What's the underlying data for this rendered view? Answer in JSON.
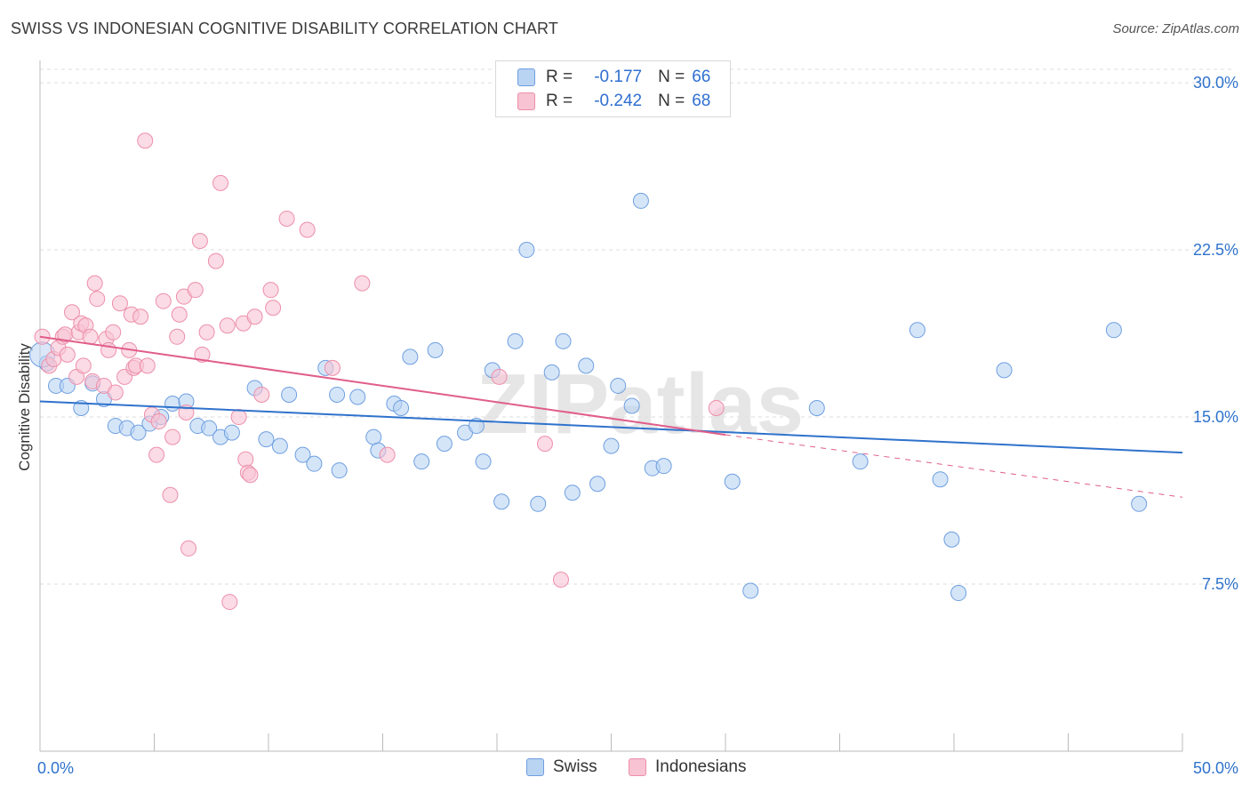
{
  "chart_data": {
    "type": "scatter",
    "title": "SWISS VS INDONESIAN COGNITIVE DISABILITY CORRELATION CHART",
    "source": "Source: ZipAtlas.com",
    "xlabel": "",
    "ylabel": "Cognitive Disability",
    "xlim": [
      0,
      50
    ],
    "ylim": [
      0,
      31
    ],
    "x_tick_labels": [
      "0.0%",
      "50.0%"
    ],
    "y_ticks": [
      7.5,
      15.0,
      22.5,
      30.0
    ],
    "y_tick_labels": [
      "7.5%",
      "15.0%",
      "22.5%",
      "30.0%"
    ],
    "watermark": "ZIPatlas",
    "legend": [
      {
        "name": "Swiss",
        "r_label": "R =",
        "r": "-0.177",
        "n_label": "N =",
        "n": "66"
      },
      {
        "name": "Indonesians",
        "r_label": "R =",
        "r": "-0.242",
        "n_label": "N =",
        "n": "68"
      }
    ],
    "colors": {
      "swiss_fill": "#b9d3f3",
      "swiss_stroke": "#6e9fe0",
      "swiss_line": "#2f72cc",
      "indo_fill": "#f8c3d3",
      "indo_stroke": "#ec8faa",
      "indo_line": "#e05d8a",
      "grid": "#dddddd",
      "axis_text": "#2f72cc"
    },
    "series": [
      {
        "name": "Swiss",
        "trend": {
          "x0": 0,
          "y0": 15.7,
          "x1": 50,
          "y1": 13.4
        },
        "points": [
          [
            0.3,
            17.4
          ],
          [
            0.7,
            16.4
          ],
          [
            1.2,
            16.4
          ],
          [
            1.8,
            15.4
          ],
          [
            2.3,
            16.5
          ],
          [
            2.8,
            15.8
          ],
          [
            3.3,
            14.6
          ],
          [
            3.8,
            14.5
          ],
          [
            4.3,
            14.3
          ],
          [
            4.8,
            14.7
          ],
          [
            5.3,
            15.0
          ],
          [
            5.8,
            15.6
          ],
          [
            6.4,
            15.7
          ],
          [
            6.9,
            14.6
          ],
          [
            7.4,
            14.5
          ],
          [
            7.9,
            14.1
          ],
          [
            8.4,
            14.3
          ],
          [
            9.4,
            16.3
          ],
          [
            9.9,
            14.0
          ],
          [
            10.5,
            13.7
          ],
          [
            10.9,
            16.0
          ],
          [
            11.5,
            13.3
          ],
          [
            12.0,
            12.9
          ],
          [
            12.5,
            17.2
          ],
          [
            13.0,
            16.0
          ],
          [
            13.1,
            12.6
          ],
          [
            13.9,
            15.9
          ],
          [
            14.6,
            14.1
          ],
          [
            14.8,
            13.5
          ],
          [
            15.5,
            15.6
          ],
          [
            15.8,
            15.4
          ],
          [
            16.2,
            17.7
          ],
          [
            16.7,
            13.0
          ],
          [
            17.3,
            18.0
          ],
          [
            17.7,
            13.8
          ],
          [
            18.6,
            14.3
          ],
          [
            19.1,
            14.6
          ],
          [
            19.4,
            13.0
          ],
          [
            19.8,
            17.1
          ],
          [
            20.2,
            11.2
          ],
          [
            20.8,
            18.4
          ],
          [
            21.3,
            22.5
          ],
          [
            21.8,
            11.1
          ],
          [
            22.4,
            17.0
          ],
          [
            22.9,
            18.4
          ],
          [
            23.3,
            11.6
          ],
          [
            23.9,
            17.3
          ],
          [
            24.4,
            12.0
          ],
          [
            25.0,
            13.7
          ],
          [
            25.3,
            16.4
          ],
          [
            25.9,
            15.5
          ],
          [
            26.3,
            24.7
          ],
          [
            26.8,
            12.7
          ],
          [
            27.3,
            12.8
          ],
          [
            30.3,
            12.1
          ],
          [
            31.1,
            7.2
          ],
          [
            34.0,
            15.4
          ],
          [
            35.9,
            13.0
          ],
          [
            38.4,
            18.9
          ],
          [
            39.4,
            12.2
          ],
          [
            39.9,
            9.5
          ],
          [
            40.2,
            7.1
          ],
          [
            42.2,
            17.1
          ],
          [
            47.0,
            18.9
          ],
          [
            48.1,
            11.1
          ],
          [
            0.1,
            17.8
          ]
        ]
      },
      {
        "name": "Indonesians",
        "trend": {
          "x0": 0,
          "y0": 18.6,
          "x1": 30,
          "y1": 14.2,
          "dash_x1": 50,
          "dash_y1": 11.4
        },
        "points": [
          [
            0.1,
            18.6
          ],
          [
            0.4,
            17.3
          ],
          [
            0.6,
            17.6
          ],
          [
            0.8,
            18.1
          ],
          [
            1.0,
            18.6
          ],
          [
            1.1,
            18.7
          ],
          [
            1.2,
            17.8
          ],
          [
            1.4,
            19.7
          ],
          [
            1.6,
            16.8
          ],
          [
            1.7,
            18.8
          ],
          [
            1.8,
            19.2
          ],
          [
            1.9,
            17.3
          ],
          [
            2.0,
            19.1
          ],
          [
            2.2,
            18.6
          ],
          [
            2.3,
            16.6
          ],
          [
            2.4,
            21.0
          ],
          [
            2.5,
            20.3
          ],
          [
            2.8,
            16.4
          ],
          [
            2.9,
            18.5
          ],
          [
            3.0,
            18.0
          ],
          [
            3.2,
            18.8
          ],
          [
            3.3,
            16.1
          ],
          [
            3.5,
            20.1
          ],
          [
            3.7,
            16.8
          ],
          [
            3.9,
            18.0
          ],
          [
            4.0,
            19.6
          ],
          [
            4.1,
            17.2
          ],
          [
            4.2,
            17.3
          ],
          [
            4.4,
            19.5
          ],
          [
            4.6,
            27.4
          ],
          [
            4.7,
            17.3
          ],
          [
            4.9,
            15.1
          ],
          [
            5.1,
            13.3
          ],
          [
            5.2,
            14.8
          ],
          [
            5.4,
            20.2
          ],
          [
            5.7,
            11.5
          ],
          [
            5.8,
            14.1
          ],
          [
            6.0,
            18.6
          ],
          [
            6.1,
            19.6
          ],
          [
            6.3,
            20.4
          ],
          [
            6.4,
            15.2
          ],
          [
            6.5,
            9.1
          ],
          [
            6.8,
            20.7
          ],
          [
            7.0,
            22.9
          ],
          [
            7.1,
            17.8
          ],
          [
            7.3,
            18.8
          ],
          [
            7.7,
            22.0
          ],
          [
            7.9,
            25.5
          ],
          [
            8.2,
            19.1
          ],
          [
            8.3,
            6.7
          ],
          [
            8.7,
            15.0
          ],
          [
            8.9,
            19.2
          ],
          [
            9.0,
            13.1
          ],
          [
            9.1,
            12.5
          ],
          [
            9.2,
            12.4
          ],
          [
            9.4,
            19.5
          ],
          [
            9.7,
            16.0
          ],
          [
            10.1,
            20.7
          ],
          [
            10.2,
            19.9
          ],
          [
            10.8,
            23.9
          ],
          [
            11.7,
            23.4
          ],
          [
            12.8,
            17.2
          ],
          [
            14.1,
            21.0
          ],
          [
            15.2,
            13.3
          ],
          [
            20.1,
            16.8
          ],
          [
            22.1,
            13.8
          ],
          [
            22.8,
            7.7
          ],
          [
            29.6,
            15.4
          ]
        ]
      }
    ]
  }
}
